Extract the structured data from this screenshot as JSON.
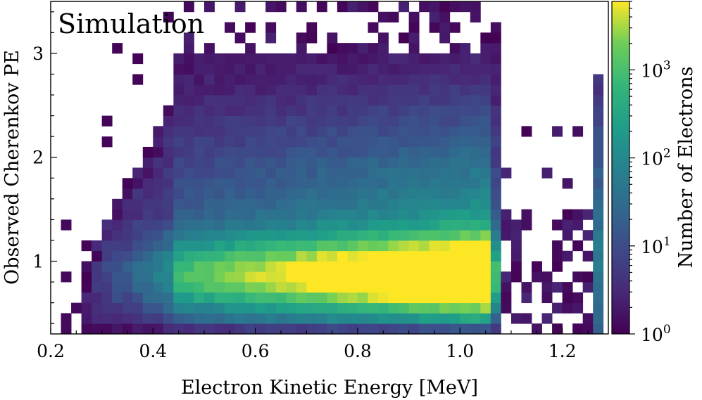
{
  "chart_data": {
    "type": "heatmap",
    "annotation": "Simulation",
    "xlabel": "Electron Kinetic Energy [MeV]",
    "ylabel": "Observed Cherenkov PE",
    "xlim": [
      0.2,
      1.29
    ],
    "ylim": [
      0.3,
      3.5
    ],
    "x_ticks": [
      "0.2",
      "0.4",
      "0.6",
      "0.8",
      "1.0",
      "1.2"
    ],
    "y_ticks": [
      "1",
      "2",
      "3"
    ],
    "colorbar": {
      "label": "Number of Electrons",
      "scale": "log",
      "range": [
        1,
        6000
      ],
      "ticks": [
        {
          "base": "10",
          "exp": "0",
          "value": 1
        },
        {
          "base": "10",
          "exp": "1",
          "value": 10
        },
        {
          "base": "10",
          "exp": "2",
          "value": 100
        },
        {
          "base": "10",
          "exp": "3",
          "value": 1000
        }
      ],
      "colormap": "viridis"
    },
    "bins": {
      "x_width": 0.02,
      "y_height": 0.1,
      "main_region_x": [
        0.44,
        1.07
      ],
      "low_energy_edge_x": 0.26,
      "high_energy_column_x": [
        1.26,
        1.28
      ]
    }
  }
}
